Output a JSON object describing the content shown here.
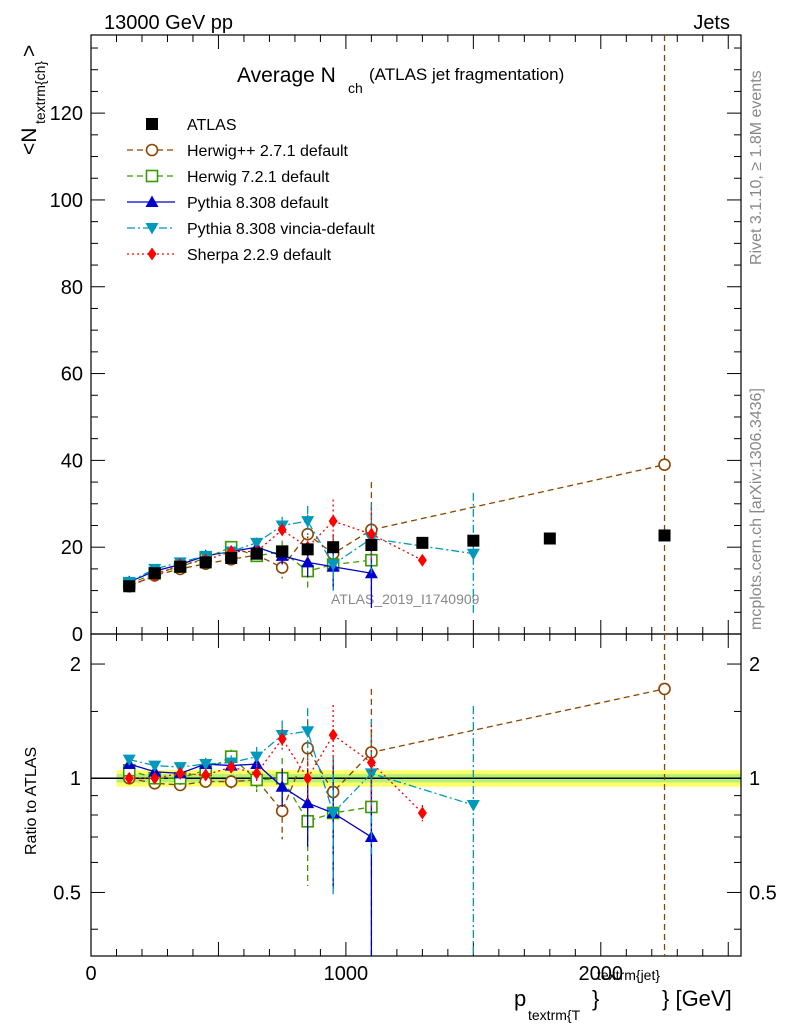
{
  "header": {
    "energy": "13000 GeV pp",
    "category": "Jets"
  },
  "side_labels": {
    "rivet": "Rivet 3.1.10, ≥ 1.8M events",
    "mcplots": "mcplots.cern.ch [arXiv:1306.3436]"
  },
  "chart_data": [
    {
      "type": "scatter",
      "panel": "main",
      "title_main": "Average N",
      "title_sub": "ch",
      "title_extra": "(ATLAS jet fragmentation)",
      "ylabel_main": "<N",
      "ylabel_sub": "textrm{ch}",
      "ylabel_end": ">",
      "watermark": "ATLAS_2019_I1740909",
      "xlim": [
        0,
        2550
      ],
      "ylim": [
        0,
        138
      ],
      "y_ticks": [
        0,
        20,
        40,
        60,
        80,
        100,
        120
      ],
      "y_tick_labels": [
        "0",
        "20",
        "40",
        "60",
        "80",
        "100",
        "120"
      ],
      "series": [
        {
          "name": "ATLAS",
          "style": "data",
          "color": "#000000",
          "marker": "square-filled",
          "x": [
            150,
            250,
            350,
            450,
            550,
            650,
            750,
            850,
            950,
            1100,
            1300,
            1500,
            1800,
            2250
          ],
          "y": [
            11,
            14,
            15.5,
            16.5,
            17.5,
            18.5,
            19,
            19.5,
            20,
            20.5,
            21,
            21.5,
            22,
            22.7
          ],
          "err": [
            0.3,
            0.3,
            0.3,
            0.3,
            0.3,
            0.3,
            0.4,
            0.4,
            0.5,
            0.5,
            0.5,
            0.6,
            0.6,
            0.8
          ]
        },
        {
          "name": "Herwig++ 2.7.1 default",
          "style": "dashed",
          "color": "#8b4500",
          "marker": "circle-open",
          "x": [
            150,
            250,
            350,
            450,
            550,
            650,
            750,
            850,
            950,
            1100,
            2250
          ],
          "y": [
            11,
            13.5,
            15,
            16.2,
            17.2,
            18.2,
            15.3,
            23,
            18.5,
            24,
            39
          ],
          "err": [
            0.5,
            0.5,
            0.6,
            0.6,
            0.8,
            1.0,
            2.5,
            4.5,
            4.5,
            11,
            120
          ]
        },
        {
          "name": "Herwig 7.2.1 default",
          "style": "dashed",
          "color": "#3a9a00",
          "marker": "square-open",
          "x": [
            150,
            250,
            350,
            450,
            550,
            650,
            750,
            850,
            950,
            1100
          ],
          "y": [
            11.5,
            14,
            15.5,
            17.5,
            20,
            18,
            19,
            14.5,
            16,
            17
          ],
          "err": [
            0.5,
            0.5,
            0.6,
            0.7,
            0.8,
            1.2,
            2.5,
            4.5,
            5.5,
            8
          ]
        },
        {
          "name": "Pythia 8.308 default",
          "style": "solid",
          "color": "#0000cc",
          "marker": "triangle-up",
          "x": [
            150,
            250,
            350,
            450,
            550,
            650,
            750,
            850,
            950,
            1100
          ],
          "y": [
            12,
            14.5,
            16,
            18,
            19,
            20,
            18,
            16.5,
            15.5,
            14
          ],
          "err": [
            0.5,
            0.5,
            0.5,
            0.6,
            0.7,
            1.0,
            2.0,
            3.5,
            5.5,
            8
          ]
        },
        {
          "name": "Pythia 8.308 vincia-default",
          "style": "dashdot",
          "color": "#0099bb",
          "marker": "triangle-down",
          "x": [
            150,
            250,
            350,
            450,
            550,
            650,
            750,
            850,
            950,
            1100,
            1500
          ],
          "y": [
            12,
            15,
            16.5,
            18,
            19,
            21,
            25,
            26,
            16,
            22,
            18.5
          ],
          "err": [
            0.5,
            0.5,
            0.6,
            0.6,
            0.8,
            1.2,
            2.0,
            3.5,
            6,
            8,
            14
          ]
        },
        {
          "name": "Sherpa 2.2.9 default",
          "style": "dotted",
          "color": "#ff0000",
          "marker": "diamond",
          "x": [
            150,
            250,
            350,
            450,
            550,
            650,
            750,
            850,
            950,
            1100,
            1300
          ],
          "y": [
            11,
            13.5,
            16,
            17,
            19,
            19,
            24,
            20,
            26,
            23,
            17
          ],
          "err": [
            0.5,
            0.5,
            0.5,
            0.6,
            0.7,
            1.0,
            1.5,
            2.5,
            5,
            6,
            1
          ]
        }
      ]
    },
    {
      "type": "scatter",
      "panel": "ratio",
      "ylabel": "Ratio to ATLAS",
      "xlabel_main": "p",
      "xlabel_sub": "textrm{T",
      "xlabel_mid": "}",
      "xlabel_sup": "textrm{jet}",
      "xlabel_end": "} [GeV]",
      "xlim": [
        0,
        2550
      ],
      "ylim": [
        0.34,
        2.4
      ],
      "x_ticks": [
        0,
        1000,
        2000
      ],
      "x_tick_labels": [
        "0",
        "1000",
        "2000"
      ],
      "y_ticks": [
        0.5,
        1,
        2
      ],
      "y_tick_labels": [
        "0.5",
        "1",
        "2"
      ],
      "band": {
        "x_start": 100,
        "x_end": 2550,
        "half_width": 0.05,
        "inner_half_width": 0.025
      },
      "series": [
        {
          "name": "Herwig++ 2.7.1 default",
          "x": [
            150,
            250,
            350,
            450,
            550,
            650,
            750,
            850,
            950,
            1100,
            2250
          ],
          "y": [
            1.0,
            0.97,
            0.96,
            0.98,
            0.98,
            0.99,
            0.82,
            1.2,
            0.92,
            1.17,
            1.72
          ],
          "err": [
            0.03,
            0.03,
            0.03,
            0.03,
            0.04,
            0.05,
            0.13,
            0.22,
            0.22,
            0.55,
            5
          ]
        },
        {
          "name": "Herwig 7.2.1 default",
          "x": [
            150,
            250,
            350,
            450,
            550,
            650,
            750,
            850,
            950,
            1100
          ],
          "y": [
            1.05,
            1.0,
            1.0,
            1.05,
            1.14,
            0.99,
            1.0,
            0.77,
            0.81,
            0.84
          ],
          "err": [
            0.03,
            0.03,
            0.04,
            0.04,
            0.05,
            0.07,
            0.13,
            0.25,
            0.3,
            0.5
          ]
        },
        {
          "name": "Pythia 8.308 default",
          "x": [
            150,
            250,
            350,
            450,
            550,
            650,
            750,
            850,
            950,
            1100
          ],
          "y": [
            1.09,
            1.04,
            1.03,
            1.09,
            1.08,
            1.09,
            0.95,
            0.86,
            0.81,
            0.7
          ],
          "err": [
            0.03,
            0.03,
            0.03,
            0.04,
            0.04,
            0.06,
            0.11,
            0.2,
            0.3,
            0.4
          ]
        },
        {
          "name": "Pythia 8.308 vincia-default",
          "x": [
            150,
            250,
            350,
            450,
            550,
            650,
            750,
            850,
            950,
            1100,
            1500
          ],
          "y": [
            1.12,
            1.08,
            1.07,
            1.09,
            1.1,
            1.14,
            1.3,
            1.33,
            0.81,
            1.03,
            0.85
          ],
          "err": [
            0.03,
            0.03,
            0.03,
            0.04,
            0.05,
            0.07,
            0.12,
            0.2,
            0.32,
            0.4,
            0.7
          ]
        },
        {
          "name": "Sherpa 2.2.9 default",
          "x": [
            150,
            250,
            350,
            450,
            550,
            650,
            750,
            850,
            950,
            1100,
            1300
          ],
          "y": [
            1.0,
            1.0,
            1.03,
            1.02,
            1.07,
            1.03,
            1.27,
            1.0,
            1.3,
            1.1,
            0.81
          ],
          "err": [
            0.03,
            0.03,
            0.03,
            0.04,
            0.04,
            0.06,
            0.08,
            0.13,
            0.26,
            0.28,
            0.04
          ]
        }
      ]
    }
  ]
}
